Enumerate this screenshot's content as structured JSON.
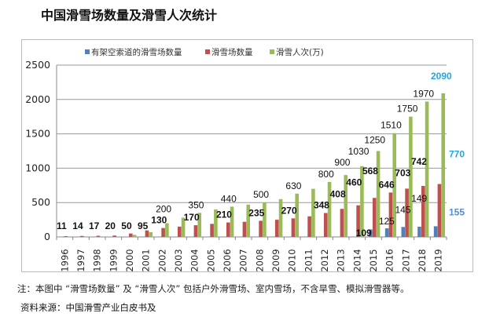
{
  "title": "中国滑雪场数量及滑雪人次统计",
  "note": "注：本图中 “滑雪场数量” 及 “滑雪人次” 包括户外滑雪场、室内雪场，不含旱雪、模拟滑雪器等。",
  "source": "资料来源：中国滑雪产业白皮书及",
  "chart_data": {
    "type": "bar",
    "title": "",
    "xlabel": "",
    "ylabel": "",
    "ylim": [
      0,
      2500
    ],
    "yticks": [
      0,
      500,
      1000,
      1500,
      2000,
      2500
    ],
    "grid": true,
    "legend_position": "top",
    "categories": [
      "1996",
      "1997",
      "1998",
      "1999",
      "2000",
      "2001",
      "2002",
      "2003",
      "2004",
      "2005",
      "2006",
      "2007",
      "2008",
      "2009",
      "2010",
      "2011",
      "2012",
      "2013",
      "2014",
      "2015",
      "2016",
      "2017",
      "2018",
      "2019"
    ],
    "series": [
      {
        "name": "有架空索道的滑雪场数量",
        "color": "#4f81bd",
        "values": [
          0,
          0,
          0,
          0,
          0,
          0,
          0,
          0,
          0,
          0,
          0,
          0,
          0,
          0,
          0,
          0,
          0,
          0,
          0,
          109,
          125,
          145,
          149,
          155
        ],
        "labels": [
          null,
          null,
          null,
          null,
          null,
          null,
          null,
          null,
          null,
          null,
          null,
          null,
          null,
          null,
          null,
          null,
          null,
          null,
          null,
          "109",
          "125",
          "145",
          "149",
          "155"
        ],
        "last_label_color": "#4f8fd8"
      },
      {
        "name": "滑雪场数量",
        "color": "#c0504d",
        "values": [
          11,
          14,
          17,
          20,
          50,
          95,
          130,
          150,
          170,
          190,
          210,
          220,
          235,
          250,
          270,
          300,
          348,
          408,
          460,
          568,
          646,
          703,
          742,
          770
        ],
        "labels": [
          "11",
          "14",
          "17",
          "20",
          "50",
          "95",
          "130",
          null,
          "170",
          null,
          "210",
          null,
          "235",
          null,
          "270",
          null,
          "348",
          "408",
          "460",
          "568",
          "646",
          "703",
          "742",
          "770"
        ],
        "last_label_color": "#1ea7e4"
      },
      {
        "name": "滑雪人次(万)",
        "color": "#9bbb59",
        "values": [
          0,
          0,
          0,
          0,
          30,
          70,
          200,
          280,
          350,
          400,
          440,
          470,
          500,
          550,
          630,
          700,
          800,
          900,
          1030,
          1250,
          1510,
          1750,
          1970,
          2090
        ],
        "labels": [
          null,
          null,
          null,
          null,
          null,
          null,
          "200",
          null,
          "350",
          null,
          "440",
          null,
          "500",
          null,
          "630",
          null,
          "800",
          "900",
          "1030",
          "1250",
          "1510",
          "1750",
          "1970",
          "2090"
        ],
        "last_label_color": "#1ea7e4"
      }
    ]
  }
}
